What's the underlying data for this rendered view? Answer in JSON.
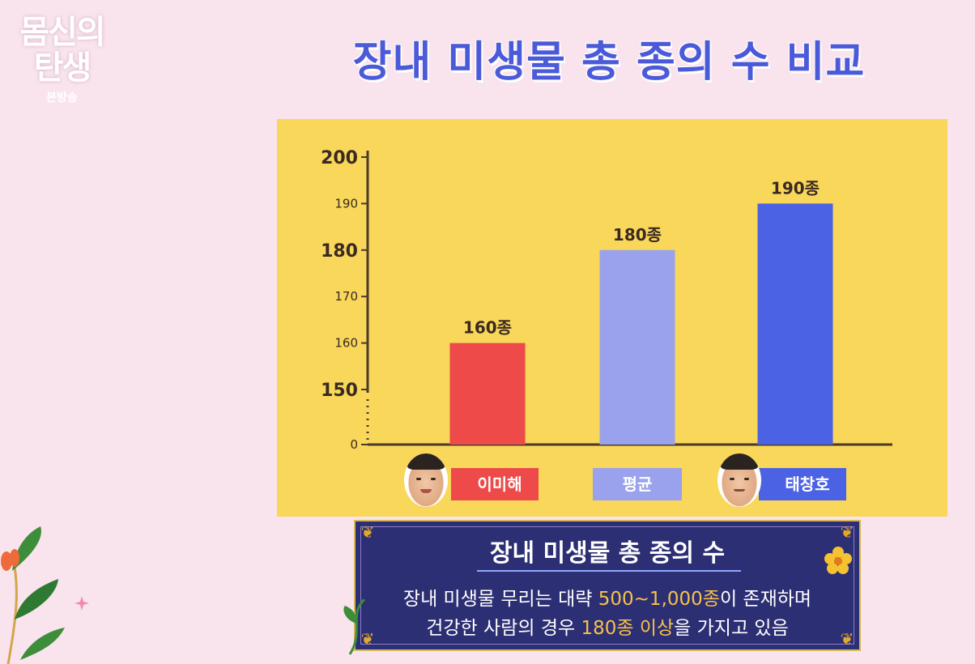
{
  "logo": {
    "line1": "몸신의",
    "line2": "탄생",
    "sub": "본방송"
  },
  "title": "장내 미생물 총 종의 수 비교",
  "colors": {
    "panel": "#f8d75a",
    "title": "#4a5ad8",
    "axis": "#4a3a2a"
  },
  "chart_data": {
    "type": "bar",
    "title": "장내 미생물 총 종의 수 비교",
    "categories": [
      "이미해",
      "평균",
      "태창호"
    ],
    "values": [
      160,
      180,
      190
    ],
    "data_labels": [
      "160종",
      "180종",
      "190종"
    ],
    "bar_colors": [
      "#ee4a4a",
      "#9aa2ee",
      "#4c62e4"
    ],
    "y_ticks": [
      "200",
      "190",
      "180",
      "170",
      "160",
      "150",
      "0"
    ],
    "y_tick_values": [
      200,
      190,
      180,
      170,
      160,
      150
    ],
    "ylim": [
      150,
      200
    ],
    "axis_break": true,
    "grid": false,
    "legend": "none"
  },
  "info": {
    "title": "장내 미생물 총 종의 수",
    "line1_pre": "장내 미생물 무리는 대략 ",
    "line1_hl": "500~1,000종",
    "line1_post": "이 존재하며",
    "line2_pre": "건강한 사람의 경우 ",
    "line2_hl": "180종 이상",
    "line2_post": "을 가지고 있음"
  }
}
